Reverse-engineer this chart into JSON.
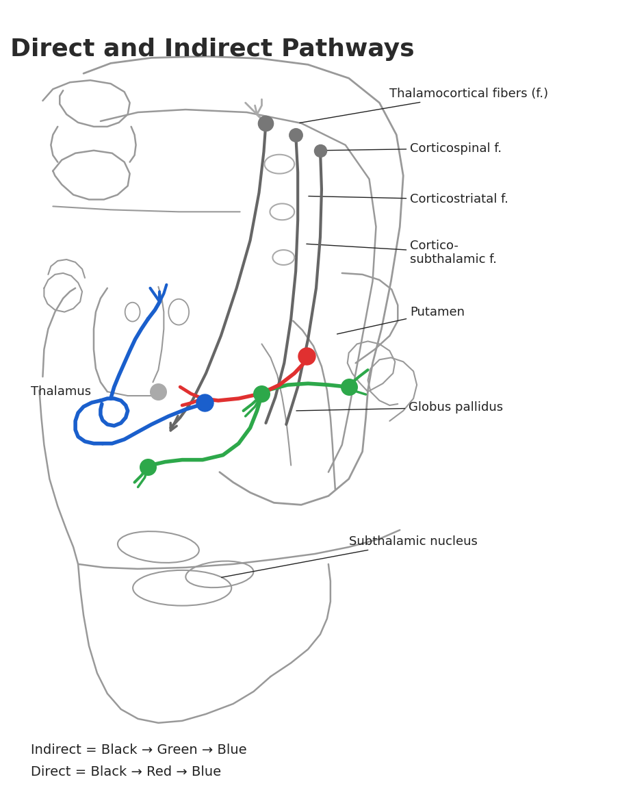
{
  "title": "Direct and Indirect Pathways",
  "title_fontsize": 26,
  "title_color": "#2a2a2a",
  "bg_color": "#ffffff",
  "legend_line1": "Indirect = Black → Green → Blue",
  "legend_line2": "Direct = Black → Red → Blue",
  "legend_fontsize": 14,
  "label_fontsize": 13,
  "anatomy_color": "#999999",
  "fiber_color": "#666666",
  "red_color": "#e03030",
  "green_color": "#2da84a",
  "blue_color": "#1a5fcc",
  "gray_dot_color": "#777777",
  "light_gray_dot": "#aaaaaa"
}
